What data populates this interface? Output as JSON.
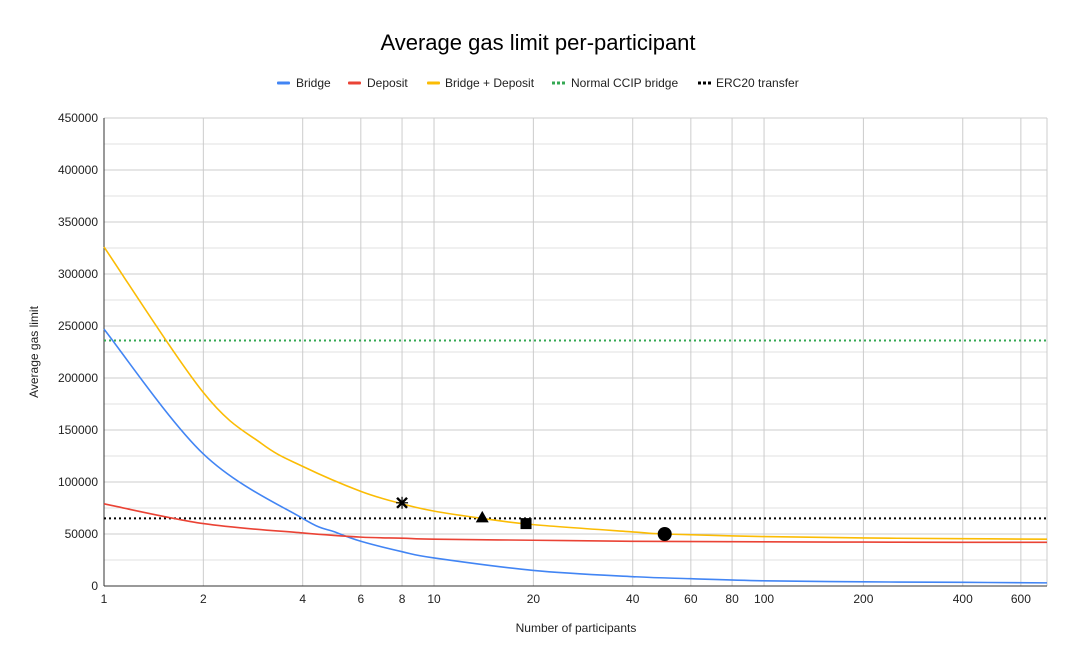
{
  "chart_data": {
    "type": "line",
    "title": "Average gas limit per-participant",
    "xlabel": "Number of participants",
    "ylabel": "Average gas limit",
    "xscale": "log",
    "xlim": [
      1,
      720
    ],
    "ylim": [
      0,
      450000
    ],
    "x_ticks": [
      1,
      2,
      4,
      6,
      8,
      10,
      20,
      40,
      60,
      80,
      100,
      200,
      400,
      600
    ],
    "x_tick_labels": [
      "1",
      "2",
      "4",
      "6",
      "8",
      "10",
      "20",
      "40",
      "60",
      "80",
      "100",
      "200",
      "400",
      "600"
    ],
    "y_ticks": [
      0,
      50000,
      100000,
      150000,
      200000,
      250000,
      300000,
      350000,
      400000,
      450000
    ],
    "y_tick_labels": [
      "0",
      "50000",
      "100000",
      "150000",
      "200000",
      "250000",
      "300000",
      "350000",
      "400000",
      "450000"
    ],
    "legend": "top",
    "series": [
      {
        "name": "Bridge",
        "color": "#4285F4",
        "style": "solid",
        "x": [
          1,
          2,
          4,
          5,
          6,
          8,
          10,
          20,
          40,
          60,
          100,
          200,
          400,
          720
        ],
        "y": [
          247000,
          127000,
          65000,
          52000,
          43000,
          33000,
          27000,
          15000,
          9000,
          7000,
          5000,
          4000,
          3500,
          3000
        ]
      },
      {
        "name": "Deposit",
        "color": "#EA4335",
        "style": "solid",
        "x": [
          1,
          2,
          4,
          6,
          8,
          10,
          20,
          40,
          100,
          200,
          400,
          720
        ],
        "y": [
          79000,
          60000,
          51000,
          47000,
          46000,
          45000,
          44000,
          43000,
          42500,
          42200,
          42000,
          42000
        ]
      },
      {
        "name": "Bridge + Deposit",
        "color": "#FBBC04",
        "style": "solid",
        "x": [
          1,
          2,
          3,
          4,
          6,
          8,
          10,
          14,
          20,
          40,
          50,
          100,
          200,
          400,
          720
        ],
        "y": [
          326000,
          186000,
          137000,
          115000,
          91000,
          79000,
          72000,
          65000,
          59000,
          52000,
          50000,
          47500,
          46200,
          45500,
          45000
        ]
      },
      {
        "name": "Normal CCIP bridge",
        "color": "#34A853",
        "style": "dotted",
        "x": [
          1,
          720
        ],
        "y": [
          236000,
          236000
        ]
      },
      {
        "name": "ERC20 transfer",
        "color": "#000000",
        "style": "dotted",
        "x": [
          1,
          720
        ],
        "y": [
          65000,
          65000
        ]
      }
    ],
    "annotations": [
      {
        "marker": "x-star",
        "x": 8,
        "y": 80000
      },
      {
        "marker": "triangle",
        "x": 14,
        "y": 66000
      },
      {
        "marker": "square",
        "x": 19,
        "y": 60000
      },
      {
        "marker": "circle",
        "x": 50,
        "y": 50000
      }
    ]
  }
}
